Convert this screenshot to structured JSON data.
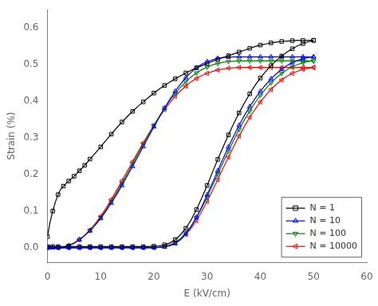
{
  "chart_data": {
    "type": "line",
    "xlabel": "E (kV/cm)",
    "ylabel": "Strain (%)",
    "xlim": [
      0,
      60
    ],
    "ylim": [
      -0.04,
      0.65
    ],
    "xticks": [
      0,
      10,
      20,
      30,
      40,
      50,
      60
    ],
    "yticks": [
      {
        "value": 0.0,
        "label": "0.0"
      },
      0.1,
      0.2,
      0.3,
      0.4,
      0.5,
      0.6
    ],
    "grid": false,
    "legend": "lower right",
    "series": [
      {
        "name": "N = 1",
        "color": "black",
        "marker": "square",
        "x": [
          0,
          0.5,
          1.0,
          1.5,
          2.0,
          2.5,
          3.0,
          3.5,
          4.0,
          4.5,
          5.0,
          5.5,
          6.0,
          6.5,
          7.0,
          7.5,
          8.0,
          9.0,
          10.0,
          11.0,
          12.0,
          13.0,
          14.0,
          15.0,
          16.0,
          17.0,
          18.0,
          19.0,
          20.0,
          21.0,
          22.0,
          23.0,
          24.0,
          25.0,
          26.0,
          27.0,
          28.0,
          29.0,
          30.0,
          31.0,
          32.0,
          33.0,
          34.0,
          35.0,
          36.0,
          37.0,
          38.0,
          39.0,
          40.0,
          41.0,
          42.0,
          43.0,
          44.0,
          45.0,
          46.0,
          47.0,
          48.0,
          49.0,
          50.0
        ],
        "values": [
          0.03,
          0.07,
          0.1,
          0.125,
          0.145,
          0.16,
          0.168,
          0.175,
          0.182,
          0.188,
          0.195,
          0.202,
          0.21,
          0.217,
          0.225,
          0.233,
          0.242,
          0.258,
          0.275,
          0.293,
          0.31,
          0.327,
          0.343,
          0.358,
          0.372,
          0.386,
          0.398,
          0.41,
          0.422,
          0.433,
          0.443,
          0.452,
          0.461,
          0.469,
          0.477,
          0.484,
          0.491,
          0.497,
          0.503,
          0.509,
          0.514,
          0.519,
          0.524,
          0.529,
          0.534,
          0.539,
          0.544,
          0.549,
          0.553,
          0.556,
          0.559,
          0.561,
          0.563,
          0.564,
          0.565,
          0.566,
          0.566,
          0.566,
          0.566
        ]
      },
      {
        "color": "black",
        "marker": "square",
        "x": [
          50.0,
          49.0,
          48.0,
          47.0,
          46.0,
          45.0,
          44.0,
          43.0,
          42.0,
          41.0,
          40.0,
          39.0,
          38.0,
          37.0,
          36.0,
          35.0,
          34.0,
          33.0,
          32.0,
          31.0,
          30.0,
          29.0,
          28.0,
          27.0,
          26.0,
          25.0,
          24.0,
          23.0,
          22.0,
          21.0,
          20.0,
          19.0,
          18.0,
          17.0,
          16.0,
          15.0,
          14.0,
          13.0,
          12.0,
          11.0,
          10.0,
          9.0,
          8.0,
          7.0,
          6.0,
          5.0,
          4.0,
          3.0,
          2.0,
          1.5,
          1.0,
          0.5,
          0.0
        ],
        "values": [
          0.566,
          0.562,
          0.557,
          0.551,
          0.543,
          0.534,
          0.523,
          0.511,
          0.497,
          0.481,
          0.463,
          0.443,
          0.42,
          0.395,
          0.368,
          0.339,
          0.308,
          0.275,
          0.241,
          0.206,
          0.17,
          0.136,
          0.104,
          0.076,
          0.053,
          0.035,
          0.022,
          0.013,
          0.008,
          0.005,
          0.004,
          0.003,
          0.003,
          0.003,
          0.003,
          0.003,
          0.003,
          0.003,
          0.003,
          0.003,
          0.003,
          0.003,
          0.003,
          0.003,
          0.003,
          0.003,
          0.003,
          0.003,
          0.003,
          0.003,
          0.003,
          0.003,
          0.003
        ]
      },
      {
        "name": "N = 10",
        "color": "blue",
        "marker": "triangle-up",
        "x": [
          0,
          0.5,
          1.0,
          1.5,
          2.0,
          3.0,
          4.0,
          5.0,
          6.0,
          7.0,
          8.0,
          9.0,
          10.0,
          11.0,
          12.0,
          13.0,
          14.0,
          15.0,
          16.0,
          17.0,
          18.0,
          19.0,
          20.0,
          21.0,
          22.0,
          23.0,
          24.0,
          25.0,
          26.0,
          27.0,
          28.0,
          29.0,
          30.0,
          31.0,
          32.0,
          33.0,
          34.0,
          35.0,
          36.0,
          37.0,
          38.0,
          39.0,
          40.0,
          41.0,
          42.0,
          43.0,
          44.0,
          45.0,
          46.0,
          47.0,
          48.0,
          49.0,
          50.0
        ],
        "values": [
          0.0,
          0.0,
          0.0,
          0.0,
          0.0,
          0.0,
          0.005,
          0.012,
          0.022,
          0.033,
          0.046,
          0.062,
          0.08,
          0.1,
          0.122,
          0.145,
          0.17,
          0.196,
          0.222,
          0.249,
          0.276,
          0.303,
          0.33,
          0.356,
          0.381,
          0.405,
          0.427,
          0.447,
          0.464,
          0.479,
          0.491,
          0.501,
          0.508,
          0.513,
          0.517,
          0.519,
          0.52,
          0.521,
          0.521,
          0.521,
          0.521,
          0.521,
          0.521,
          0.521,
          0.521,
          0.521,
          0.521,
          0.521,
          0.521,
          0.521,
          0.521,
          0.521,
          0.521
        ]
      },
      {
        "color": "blue",
        "marker": "triangle-up",
        "x": [
          50.0,
          49.0,
          48.0,
          47.0,
          46.0,
          45.0,
          44.0,
          43.0,
          42.0,
          41.0,
          40.0,
          39.0,
          38.0,
          37.0,
          36.0,
          35.0,
          34.0,
          33.0,
          32.0,
          31.0,
          30.0,
          29.0,
          28.0,
          27.0,
          26.0,
          25.0,
          24.0,
          23.0,
          22.0,
          21.0,
          20.0,
          19.0,
          18.0,
          17.0,
          16.0,
          15.0,
          14.0,
          13.0,
          12.0,
          11.0,
          10.0,
          9.0,
          8.0,
          7.0,
          6.0,
          5.0,
          4.0,
          3.0,
          2.0,
          1.0,
          0.5,
          0.0
        ],
        "values": [
          0.521,
          0.519,
          0.516,
          0.511,
          0.505,
          0.497,
          0.487,
          0.475,
          0.461,
          0.445,
          0.427,
          0.407,
          0.385,
          0.361,
          0.334,
          0.305,
          0.275,
          0.243,
          0.21,
          0.177,
          0.144,
          0.112,
          0.083,
          0.058,
          0.038,
          0.022,
          0.011,
          0.005,
          0.002,
          0.001,
          0.0,
          0.0,
          0.0,
          0.0,
          0.0,
          0.0,
          0.0,
          0.0,
          0.0,
          0.0,
          0.0,
          0.0,
          0.0,
          0.0,
          0.0,
          0.0,
          0.0,
          0.0,
          0.0,
          0.0,
          0.0,
          0.0
        ]
      },
      {
        "name": "N = 100",
        "color": "green",
        "marker": "triangle-down",
        "x": [
          0,
          1.0,
          2.0,
          3.0,
          4.0,
          5.0,
          6.0,
          7.0,
          8.0,
          9.0,
          10.0,
          11.0,
          12.0,
          13.0,
          14.0,
          15.0,
          16.0,
          17.0,
          18.0,
          19.0,
          20.0,
          21.0,
          22.0,
          23.0,
          24.0,
          25.0,
          26.0,
          27.0,
          28.0,
          29.0,
          30.0,
          31.0,
          32.0,
          33.0,
          34.0,
          35.0,
          36.0,
          37.0,
          38.0,
          39.0,
          40.0,
          41.0,
          42.0,
          43.0,
          44.0,
          45.0,
          46.0,
          47.0,
          48.0,
          49.0,
          50.0
        ],
        "values": [
          0.0,
          0.0,
          0.0,
          0.002,
          0.006,
          0.012,
          0.022,
          0.033,
          0.047,
          0.063,
          0.082,
          0.103,
          0.126,
          0.15,
          0.176,
          0.202,
          0.229,
          0.256,
          0.282,
          0.308,
          0.334,
          0.358,
          0.381,
          0.402,
          0.421,
          0.438,
          0.453,
          0.466,
          0.477,
          0.486,
          0.493,
          0.499,
          0.503,
          0.506,
          0.508,
          0.509,
          0.51,
          0.51,
          0.51,
          0.51,
          0.51,
          0.51,
          0.51,
          0.51,
          0.51,
          0.51,
          0.51,
          0.51,
          0.51,
          0.51,
          0.51
        ]
      },
      {
        "color": "green",
        "marker": "triangle-down",
        "x": [
          50.0,
          49.0,
          48.0,
          47.0,
          46.0,
          45.0,
          44.0,
          43.0,
          42.0,
          41.0,
          40.0,
          39.0,
          38.0,
          37.0,
          36.0,
          35.0,
          34.0,
          33.0,
          32.0,
          31.0,
          30.0,
          29.0,
          28.0,
          27.0,
          26.0,
          25.0,
          24.0,
          23.0,
          22.0,
          21.0,
          20.0,
          19.0,
          18.0,
          17.0,
          16.0,
          15.0,
          14.0,
          13.0,
          12.0,
          11.0,
          10.0,
          9.0,
          8.0,
          7.0,
          6.0,
          5.0,
          4.0,
          3.0,
          2.0,
          1.0,
          0.0
        ],
        "values": [
          0.51,
          0.508,
          0.505,
          0.5,
          0.494,
          0.486,
          0.476,
          0.464,
          0.45,
          0.434,
          0.416,
          0.396,
          0.373,
          0.349,
          0.323,
          0.294,
          0.264,
          0.233,
          0.201,
          0.17,
          0.139,
          0.109,
          0.082,
          0.059,
          0.04,
          0.025,
          0.014,
          0.008,
          0.004,
          0.002,
          0.001,
          0.0,
          0.0,
          0.0,
          0.0,
          0.0,
          0.0,
          0.0,
          0.0,
          0.0,
          0.0,
          0.0,
          0.0,
          0.0,
          0.0,
          0.0,
          0.0,
          0.0,
          0.0,
          0.0,
          0.0
        ]
      },
      {
        "name": "N = 10000",
        "color": "red",
        "marker": "triangle-left",
        "x": [
          0,
          1.0,
          2.0,
          3.0,
          4.0,
          5.0,
          6.0,
          7.0,
          8.0,
          9.0,
          10.0,
          11.0,
          12.0,
          13.0,
          14.0,
          15.0,
          16.0,
          17.0,
          18.0,
          19.0,
          20.0,
          21.0,
          22.0,
          23.0,
          24.0,
          25.0,
          26.0,
          27.0,
          28.0,
          29.0,
          30.0,
          31.0,
          32.0,
          33.0,
          34.0,
          35.0,
          36.0,
          37.0,
          38.0,
          39.0,
          40.0,
          41.0,
          42.0,
          43.0,
          44.0,
          45.0,
          46.0,
          47.0,
          48.0,
          49.0,
          50.0
        ],
        "values": [
          0.0,
          0.0,
          0.0,
          0.002,
          0.006,
          0.013,
          0.022,
          0.034,
          0.049,
          0.066,
          0.086,
          0.108,
          0.132,
          0.157,
          0.183,
          0.209,
          0.235,
          0.261,
          0.286,
          0.311,
          0.334,
          0.356,
          0.377,
          0.396,
          0.413,
          0.428,
          0.441,
          0.453,
          0.462,
          0.47,
          0.476,
          0.481,
          0.485,
          0.488,
          0.49,
          0.491,
          0.492,
          0.492,
          0.492,
          0.492,
          0.492,
          0.492,
          0.492,
          0.492,
          0.492,
          0.492,
          0.492,
          0.492,
          0.492,
          0.492,
          0.492
        ]
      },
      {
        "color": "red",
        "marker": "triangle-left",
        "x": [
          50.0,
          49.0,
          48.0,
          47.0,
          46.0,
          45.0,
          44.0,
          43.0,
          42.0,
          41.0,
          40.0,
          39.0,
          38.0,
          37.0,
          36.0,
          35.0,
          34.0,
          33.0,
          32.0,
          31.0,
          30.0,
          29.0,
          28.0,
          27.0,
          26.0,
          25.0,
          24.0,
          23.0,
          22.0,
          21.0,
          20.0,
          19.0,
          18.0,
          17.0,
          16.0,
          15.0,
          14.0,
          13.0,
          12.0,
          11.0,
          10.0,
          9.0,
          8.0,
          7.0,
          6.0,
          5.0,
          4.0,
          3.0,
          2.0,
          1.0,
          0.0
        ],
        "values": [
          0.492,
          0.49,
          0.487,
          0.482,
          0.476,
          0.468,
          0.458,
          0.446,
          0.432,
          0.416,
          0.398,
          0.378,
          0.356,
          0.331,
          0.305,
          0.277,
          0.247,
          0.217,
          0.186,
          0.156,
          0.127,
          0.099,
          0.074,
          0.053,
          0.036,
          0.022,
          0.013,
          0.007,
          0.003,
          0.001,
          0.0,
          0.0,
          0.0,
          0.0,
          0.0,
          0.0,
          0.0,
          0.0,
          0.0,
          0.0,
          0.0,
          0.0,
          0.0,
          0.0,
          0.0,
          0.0,
          0.0,
          0.0,
          0.0,
          0.0,
          0.0
        ]
      }
    ]
  }
}
